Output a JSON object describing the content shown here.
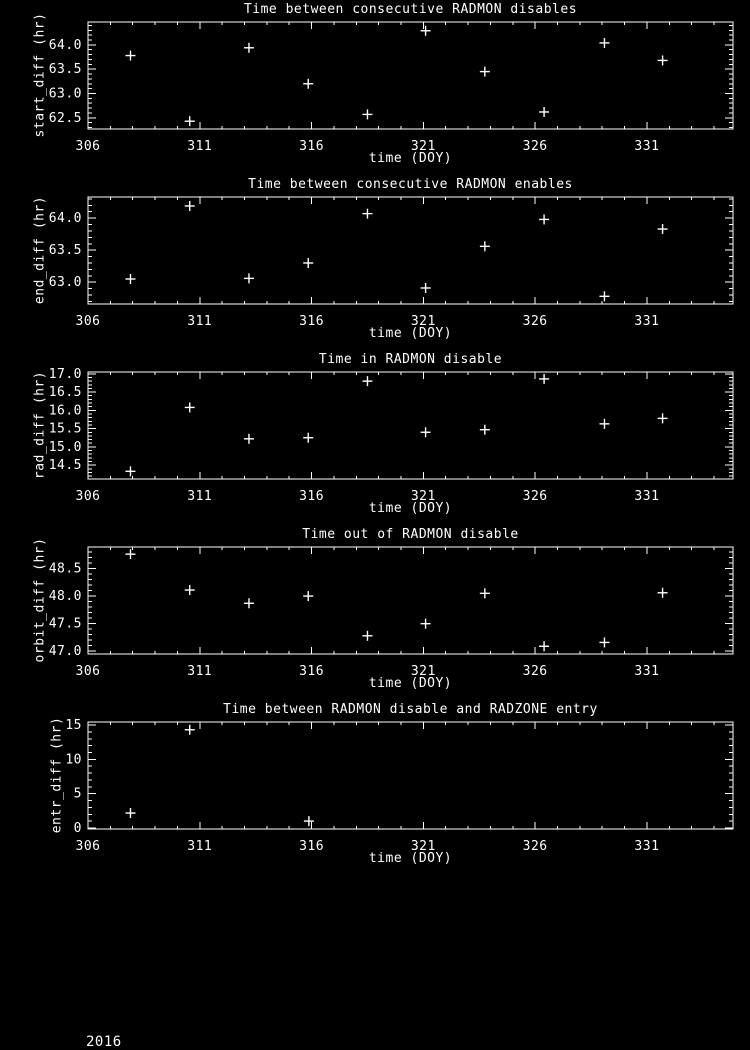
{
  "page": {
    "background": "#000000",
    "foreground": "#ffffff",
    "footer_year": "2016"
  },
  "chart_data": [
    {
      "type": "scatter",
      "title": "Time between consecutive RADMON disables",
      "xlabel": "time (DOY)",
      "ylabel": "start_diff (hr)",
      "marker": "plus",
      "marker_color": "#ffffff",
      "grid": false,
      "xlim": [
        306,
        334.85
      ],
      "ylim": [
        62.27,
        64.47
      ],
      "xticks": [
        306,
        311,
        316,
        321,
        326,
        331
      ],
      "xtick_labels": [
        "306",
        "311",
        "316",
        "321",
        "326",
        "331"
      ],
      "x_minor_step": 1,
      "yticks": [
        62.5,
        63.0,
        63.5,
        64.0
      ],
      "ytick_labels": [
        "62.5",
        "63.0",
        "63.5",
        "64.0"
      ],
      "y_minor_step": 0.1,
      "x": [
        307.9,
        310.55,
        313.2,
        315.85,
        318.5,
        321.1,
        323.75,
        326.4,
        329.1,
        331.7
      ],
      "y": [
        63.78,
        62.43,
        63.94,
        63.2,
        62.57,
        64.29,
        63.45,
        62.62,
        64.04,
        63.68
      ]
    },
    {
      "type": "scatter",
      "title": "Time between consecutive RADMON enables",
      "xlabel": "time (DOY)",
      "ylabel": "end_diff (hr)",
      "marker": "plus",
      "marker_color": "#ffffff",
      "grid": false,
      "xlim": [
        306,
        334.85
      ],
      "ylim": [
        62.66,
        64.33
      ],
      "xticks": [
        306,
        311,
        316,
        321,
        326,
        331
      ],
      "xtick_labels": [
        "306",
        "311",
        "316",
        "321",
        "326",
        "331"
      ],
      "x_minor_step": 1,
      "yticks": [
        63.0,
        63.5,
        64.0
      ],
      "ytick_labels": [
        "63.0",
        "63.5",
        "64.0"
      ],
      "y_minor_step": 0.1,
      "x": [
        307.9,
        310.55,
        313.2,
        315.85,
        318.5,
        321.1,
        323.75,
        326.4,
        329.1,
        331.7
      ],
      "y": [
        63.05,
        64.19,
        63.06,
        63.3,
        64.07,
        62.91,
        63.56,
        63.98,
        62.78,
        63.83
      ]
    },
    {
      "type": "scatter",
      "title": "Time in RADMON disable",
      "xlabel": "time (DOY)",
      "ylabel": "rad_diff (hr)",
      "marker": "plus",
      "marker_color": "#ffffff",
      "grid": false,
      "xlim": [
        306,
        334.85
      ],
      "ylim": [
        14.12,
        17.05
      ],
      "xticks": [
        306,
        311,
        316,
        321,
        326,
        331
      ],
      "xtick_labels": [
        "306",
        "311",
        "316",
        "321",
        "326",
        "331"
      ],
      "x_minor_step": 1,
      "yticks": [
        14.5,
        15.0,
        15.5,
        16.0,
        16.5,
        17.0
      ],
      "ytick_labels": [
        "14.5",
        "15.0",
        "15.5",
        "16.0",
        "16.5",
        "17.0"
      ],
      "y_minor_step": 0.1,
      "x": [
        307.9,
        310.55,
        313.2,
        315.85,
        318.5,
        321.1,
        323.75,
        326.4,
        329.1,
        331.7
      ],
      "y": [
        14.33,
        16.08,
        15.22,
        15.25,
        16.8,
        15.4,
        15.47,
        16.86,
        15.63,
        15.78
      ]
    },
    {
      "type": "scatter",
      "title": "Time out of RADMON disable",
      "xlabel": "time (DOY)",
      "ylabel": "orbit_diff (hr)",
      "marker": "plus",
      "marker_color": "#ffffff",
      "grid": false,
      "xlim": [
        306,
        334.85
      ],
      "ylim": [
        46.95,
        48.89
      ],
      "xticks": [
        306,
        311,
        316,
        321,
        326,
        331
      ],
      "xtick_labels": [
        "306",
        "311",
        "316",
        "321",
        "326",
        "331"
      ],
      "x_minor_step": 1,
      "yticks": [
        47.0,
        47.5,
        48.0,
        48.5
      ],
      "ytick_labels": [
        "47.0",
        "47.5",
        "48.0",
        "48.5"
      ],
      "y_minor_step": 0.1,
      "x": [
        307.9,
        310.55,
        313.2,
        315.85,
        318.5,
        321.1,
        323.75,
        326.4,
        329.1,
        331.7
      ],
      "y": [
        48.76,
        48.11,
        47.87,
        48.0,
        47.28,
        47.5,
        48.05,
        47.09,
        47.16,
        48.06
      ]
    },
    {
      "type": "scatter",
      "title": "Time between RADMON disable and RADZONE entry",
      "xlabel": "time (DOY)",
      "ylabel": "entr_diff (hr)",
      "marker": "plus",
      "marker_color": "#ffffff",
      "grid": false,
      "xlim": [
        306,
        334.85
      ],
      "ylim": [
        -0.15,
        15.45
      ],
      "xticks": [
        306,
        311,
        316,
        321,
        326,
        331
      ],
      "xtick_labels": [
        "306",
        "311",
        "316",
        "321",
        "326",
        "331"
      ],
      "x_minor_step": 1,
      "yticks": [
        0,
        5,
        10,
        15
      ],
      "ytick_labels": [
        "0",
        "5",
        "10",
        "15"
      ],
      "y_minor_step": 1,
      "x": [
        307.9,
        310.55,
        315.88
      ],
      "y": [
        2.18,
        14.32,
        1.0
      ]
    }
  ]
}
